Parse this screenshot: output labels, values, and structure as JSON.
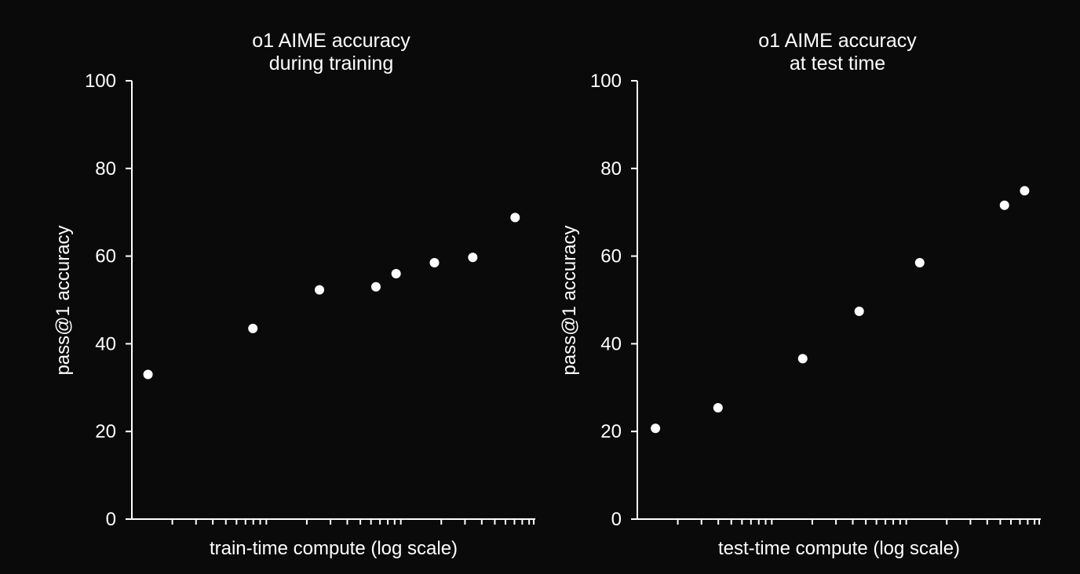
{
  "chart_data": [
    {
      "type": "scatter",
      "title_lines": [
        "o1 AIME accuracy",
        "during training"
      ],
      "xlabel": "train-time compute (log scale)",
      "ylabel": "pass@1 accuracy",
      "xscale": "log",
      "ylim": [
        0,
        100
      ],
      "yticks": [
        0,
        20,
        40,
        60,
        80,
        100
      ],
      "grid": false,
      "legend": "none",
      "series": [
        {
          "x_log_position": [
            0.04,
            0.3,
            0.465,
            0.605,
            0.655,
            0.75,
            0.845,
            0.95
          ],
          "values": [
            33,
            43.5,
            52.3,
            53,
            56,
            58.5,
            59.7,
            68.8
          ]
        }
      ]
    },
    {
      "type": "scatter",
      "title_lines": [
        "o1 AIME accuracy",
        "at test time"
      ],
      "xlabel": "test-time compute (log scale)",
      "ylabel": "pass@1 accuracy",
      "xscale": "log",
      "ylim": [
        0,
        100
      ],
      "yticks": [
        0,
        20,
        40,
        60,
        80,
        100
      ],
      "grid": false,
      "legend": "none",
      "series": [
        {
          "x_log_position": [
            0.045,
            0.2,
            0.41,
            0.55,
            0.7,
            0.91,
            0.96
          ],
          "values": [
            20.7,
            25.4,
            36.6,
            47.4,
            58.5,
            71.6,
            74.9
          ]
        }
      ]
    }
  ],
  "colors": {
    "background": "#0a0a0a",
    "foreground": "#ffffff",
    "points": "#ffffff"
  }
}
